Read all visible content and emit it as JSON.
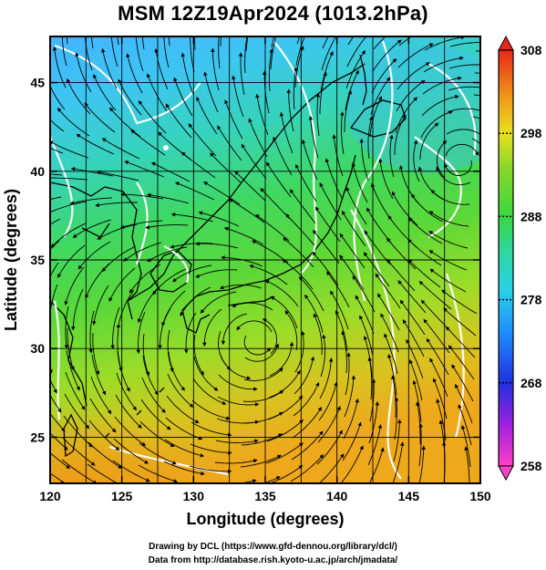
{
  "title": "MSM 12Z19Apr2024 (1013.2hPa)",
  "chart_data": {
    "type": "heatmap",
    "title": "MSM 12Z19Apr2024 (1013.2hPa)",
    "xlabel": "Longitude (degrees)",
    "ylabel": "Latitude (degrees)",
    "xlim": [
      120,
      150
    ],
    "ylim": [
      22.4,
      47.6
    ],
    "x_ticks": [
      "120",
      "125",
      "130",
      "135",
      "140",
      "145",
      "150"
    ],
    "y_ticks": [
      "25",
      "30",
      "35",
      "40",
      "45"
    ],
    "colorbar": {
      "min": 258,
      "max": 308,
      "ticks": [
        "308",
        "298",
        "288",
        "278",
        "268",
        "258"
      ]
    },
    "overlays": {
      "streamlines": true,
      "coastlines": true,
      "contours_color": "#ffffff",
      "grid": true
    },
    "features": [
      {
        "type": "cyclone",
        "lon": 148.5,
        "lat": 40.5
      },
      {
        "type": "anticyclone",
        "lon": 134.5,
        "lat": 30.5
      }
    ]
  },
  "footer": {
    "line1": "Drawing by DCL (https://www.gfd-dennou.org/library/dcl/)",
    "line2": "Data from http://database.rish.kyoto-u.ac.jp/arch/jmadata/"
  },
  "colors": {
    "cold": "#3fb8ff",
    "cool": "#33d3c3",
    "mild": "#48d84a",
    "warm": "#9edc2a",
    "hot": "#e8a020"
  }
}
